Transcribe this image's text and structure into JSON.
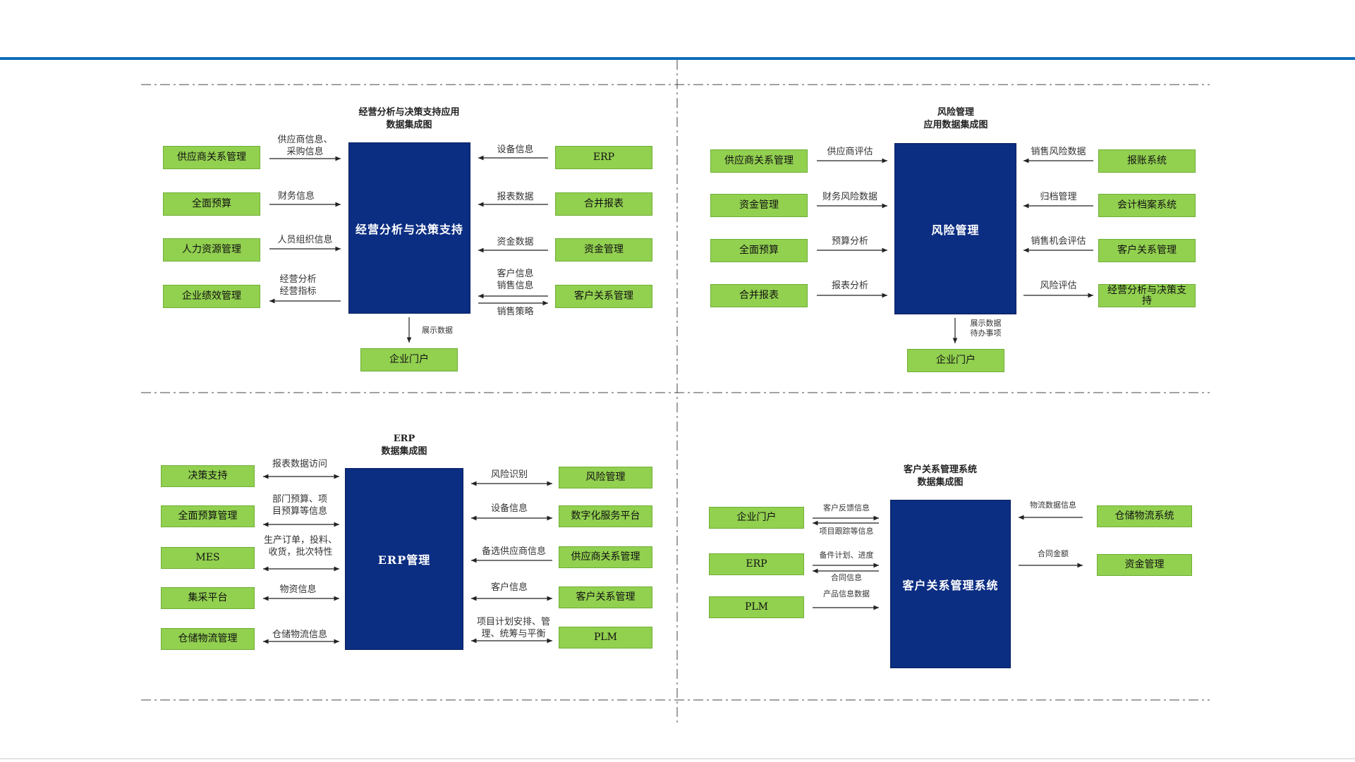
{
  "panels": {
    "p1": {
      "title": "经营分析与决策支持应用\n数据集成图",
      "center": "经营分析与决策支持",
      "left": [
        "供应商关系管理",
        "全面预算",
        "人力资源管理",
        "企业绩效管理"
      ],
      "left_labels": [
        "供应商信息、\n采购信息",
        "财务信息",
        "人员组织信息",
        "经营分析\n经营指标"
      ],
      "right": [
        "ERP",
        "合并报表",
        "资金管理",
        "客户关系管理"
      ],
      "right_labels": [
        "设备信息",
        "报表数据",
        "资金数据",
        "客户信息\n销售信息",
        "销售策略"
      ],
      "bottom": "企业门户",
      "bottom_label": "展示数据"
    },
    "p2": {
      "title": "风险管理\n应用数据集成图",
      "center": "风险管理",
      "left": [
        "供应商关系管理",
        "资金管理",
        "全面预算",
        "合并报表"
      ],
      "left_labels": [
        "供应商评估",
        "财务风险数据",
        "预算分析",
        "报表分析"
      ],
      "right": [
        "报账系统",
        "会计档案系统",
        "客户关系管理",
        "经营分析与决策支\n持"
      ],
      "right_labels": [
        "销售风险数据",
        "归档管理",
        "销售机会评估",
        "风险评估"
      ],
      "bottom": "企业门户",
      "bottom_label": "展示数据\n待办事项"
    },
    "p3": {
      "title": "ERP\n数据集成图",
      "center": "ERP管理",
      "left": [
        "决策支持",
        "全面预算管理",
        "MES",
        "集采平台",
        "仓储物流管理"
      ],
      "left_labels": [
        "报表数据访问",
        "部门预算、项\n目预算等信息",
        "生产订单，投料、\n收货，批次特性",
        "物资信息",
        "仓储物流信息"
      ],
      "right": [
        "风险管理",
        "数字化服务平台",
        "供应商关系管理",
        "客户关系管理",
        "PLM"
      ],
      "right_labels": [
        "风险识别",
        "设备信息",
        "备选供应商信息",
        "客户信息",
        "项目计划安排、管\n理、统筹与平衡"
      ]
    },
    "p4": {
      "title": "客户关系管理系统\n数据集成图",
      "center": "客户关系管理系统",
      "left": [
        "企业门户",
        "ERP",
        "PLM"
      ],
      "left_labels": [
        "客户反馈信息",
        "项目跟踪等信息",
        "备件计划、进度",
        "合同信息",
        "产品信息数据"
      ],
      "right": [
        "仓储物流系统",
        "资金管理"
      ],
      "right_labels": [
        "物流数据信息",
        "合同金额"
      ]
    }
  },
  "colors": {
    "accent": "#0f6db8",
    "box_green": "#92d050",
    "box_blue": "#0b2d82"
  }
}
